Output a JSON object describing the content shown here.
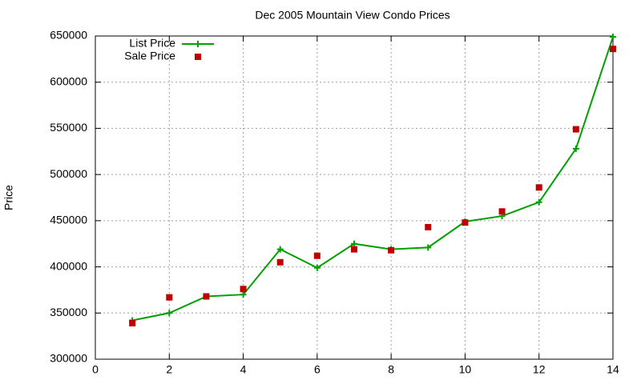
{
  "chart_data": {
    "type": "line",
    "title": "Dec 2005 Mountain View Condo Prices",
    "y_label": "Price",
    "x": [
      1,
      2,
      3,
      4,
      5,
      6,
      7,
      8,
      9,
      10,
      11,
      12,
      13,
      14
    ],
    "series": [
      {
        "name": "List Price",
        "color": "#00a000",
        "style": "linespoints",
        "values": [
          342000,
          350000,
          368000,
          370000,
          419000,
          399000,
          425000,
          419000,
          421000,
          449000,
          455000,
          470000,
          528000,
          649000
        ]
      },
      {
        "name": "Sale Price",
        "color": "#c00000",
        "style": "points",
        "values": [
          339000,
          367000,
          368000,
          376000,
          405000,
          412000,
          419000,
          418000,
          443000,
          448000,
          460000,
          486000,
          549000,
          636000
        ]
      }
    ],
    "xlim": [
      0,
      14
    ],
    "xticks": [
      0,
      2,
      4,
      6,
      8,
      10,
      12,
      14
    ],
    "ylim": [
      300000,
      650000
    ],
    "yticks": [
      300000,
      350000,
      400000,
      450000,
      500000,
      550000,
      600000,
      650000
    ],
    "grid": true,
    "legend": "top-left"
  }
}
